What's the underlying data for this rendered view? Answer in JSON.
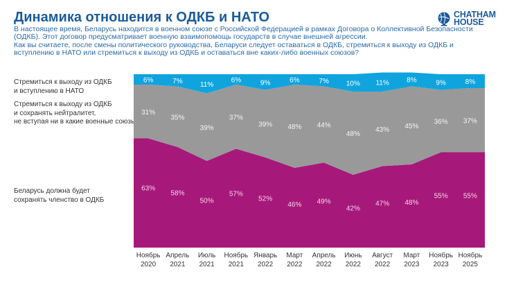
{
  "header": {
    "title": "Динамика отношения к ОДКБ и НАТО",
    "subtitle_lines": [
      "В настоящее время, Беларусь находится в военном союзе с Российской Федерацией в рамках Договора о Коллективной Безопасности",
      "(ОДКБ). Этот договор предусматривает военную взаимопомощь государств в случае внешней агрессии.",
      "Как вы считаете, после смены политического руководства, Беларуси следует оставаться в ОДКБ, стремиться к выходу из ОДКБ и",
      "вступлению в НАТО или стремиться к выходу из ОДКБ и оставаться вне каких-либо военных союзов?"
    ]
  },
  "logo": {
    "icon": "globe-icon",
    "line1": "CHATHAM",
    "line2": "HOUSE"
  },
  "legend": [
    {
      "lines": [
        "Стремиться к выходу из ОДКБ",
        "и вступлению в НАТО"
      ]
    },
    {
      "lines": [
        "Стремиться к выходу из ОДКБ",
        "и сохранять нейтралитет,",
        "не вступая ни в какие военные союзы"
      ]
    },
    {
      "lines": [
        "Беларусь должна будет",
        "сохранять членство в ОДКБ"
      ]
    }
  ],
  "chart_data": {
    "type": "area",
    "stacked": true,
    "normalized": true,
    "title": "Динамика отношения к ОДКБ и НАТО",
    "xlabel": "",
    "ylabel": "",
    "ylim": [
      0,
      100
    ],
    "grid": false,
    "legend_position": "left",
    "categories": [
      [
        "Ноябрь",
        "2020"
      ],
      [
        "Апрель",
        "2021"
      ],
      [
        "Июль",
        "2021"
      ],
      [
        "Ноябрь",
        "2021"
      ],
      [
        "Январь",
        "2022"
      ],
      [
        "Март",
        "2022"
      ],
      [
        "Апрель",
        "2022"
      ],
      [
        "Июнь",
        "2022"
      ],
      [
        "Август",
        "2022"
      ],
      [
        "Март",
        "2023"
      ],
      [
        "Ноябрь",
        "2023"
      ],
      [
        "Ноябрь",
        "2025"
      ]
    ],
    "series": [
      {
        "name": "Беларусь должна будет сохранять членство в ОДКБ",
        "color": "#a6197a",
        "label_color": "#f6d2ec",
        "values": [
          63,
          58,
          50,
          57,
          52,
          46,
          49,
          42,
          47,
          48,
          55,
          55
        ]
      },
      {
        "name": "Стремиться к выходу из ОДКБ и сохранять нейтралитет, не вступая ни в какие военные союзы",
        "color": "#999999",
        "label_color": "#f4f4f4",
        "values": [
          31,
          35,
          39,
          37,
          39,
          48,
          44,
          48,
          43,
          45,
          36,
          37
        ]
      },
      {
        "name": "Стремиться к выходу из ОДКБ и вступлению в НАТО",
        "color": "#10a4de",
        "label_color": "#ffffff",
        "values": [
          6,
          7,
          11,
          6,
          9,
          6,
          7,
          10,
          11,
          8,
          9,
          8
        ]
      }
    ]
  }
}
